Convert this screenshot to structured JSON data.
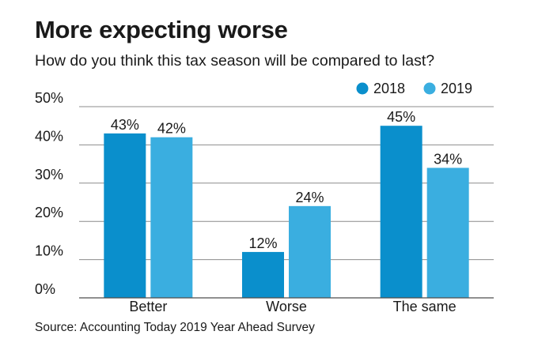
{
  "chart_data": {
    "type": "bar",
    "title": "More expecting worse",
    "subtitle": "How do you think this tax season will be compared to last?",
    "source": "Source: Accounting Today 2019 Year Ahead Survey",
    "categories": [
      "Better",
      "Worse",
      "The same"
    ],
    "series": [
      {
        "name": "2018",
        "values": [
          43,
          12,
          45
        ],
        "labels": [
          "43%",
          "12%",
          "45%"
        ],
        "color": "#0a8fcc"
      },
      {
        "name": "2019",
        "values": [
          42,
          24,
          34
        ],
        "labels": [
          "42%",
          "24%",
          "34%"
        ],
        "color": "#3aaee0"
      }
    ],
    "yticks": [
      0,
      10,
      20,
      30,
      40,
      50
    ],
    "ytick_labels": [
      "0%",
      "10%",
      "20%",
      "30%",
      "40%",
      "50%"
    ],
    "ylim": [
      0,
      50
    ],
    "grid": true,
    "legend_position": "top-right",
    "xlabel": "",
    "ylabel": ""
  }
}
